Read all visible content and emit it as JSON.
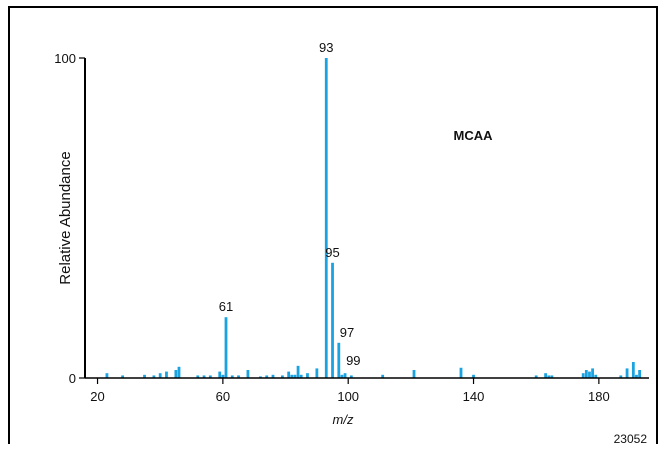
{
  "chart_data": {
    "type": "bar",
    "ylabel": "Relative Abundance",
    "xlabel": "m/z",
    "inset_label": "MCAA",
    "figure_code": "23052",
    "xlim": [
      16,
      196
    ],
    "ylim": [
      0,
      100
    ],
    "xticks": [
      20,
      60,
      100,
      140,
      180
    ],
    "yticks": [
      0,
      100
    ],
    "color": "#1aa3e0",
    "peaks": [
      {
        "mz": 23,
        "value": 1.5
      },
      {
        "mz": 28,
        "value": 0.8
      },
      {
        "mz": 35,
        "value": 1.0
      },
      {
        "mz": 38,
        "value": 0.8
      },
      {
        "mz": 40,
        "value": 1.5
      },
      {
        "mz": 42,
        "value": 2.0
      },
      {
        "mz": 45,
        "value": 2.5
      },
      {
        "mz": 46,
        "value": 3.5
      },
      {
        "mz": 52,
        "value": 0.8
      },
      {
        "mz": 54,
        "value": 0.8
      },
      {
        "mz": 56,
        "value": 0.8
      },
      {
        "mz": 59,
        "value": 2.0
      },
      {
        "mz": 60,
        "value": 1.0
      },
      {
        "mz": 61,
        "value": 19
      },
      {
        "mz": 63,
        "value": 0.8
      },
      {
        "mz": 65,
        "value": 0.8
      },
      {
        "mz": 68,
        "value": 2.5
      },
      {
        "mz": 72,
        "value": 0.5
      },
      {
        "mz": 74,
        "value": 0.8
      },
      {
        "mz": 76,
        "value": 1.0
      },
      {
        "mz": 79,
        "value": 0.8
      },
      {
        "mz": 81,
        "value": 2.0
      },
      {
        "mz": 82,
        "value": 1.0
      },
      {
        "mz": 83,
        "value": 1.0
      },
      {
        "mz": 84,
        "value": 3.8
      },
      {
        "mz": 85,
        "value": 1.0
      },
      {
        "mz": 87,
        "value": 1.5
      },
      {
        "mz": 90,
        "value": 3.0
      },
      {
        "mz": 93,
        "value": 100
      },
      {
        "mz": 95,
        "value": 36
      },
      {
        "mz": 97,
        "value": 11
      },
      {
        "mz": 98,
        "value": 1.0
      },
      {
        "mz": 99,
        "value": 1.5
      },
      {
        "mz": 101,
        "value": 0.8
      },
      {
        "mz": 111,
        "value": 1.0
      },
      {
        "mz": 121,
        "value": 2.5
      },
      {
        "mz": 136,
        "value": 3.2
      },
      {
        "mz": 140,
        "value": 1.0
      },
      {
        "mz": 160,
        "value": 0.8
      },
      {
        "mz": 163,
        "value": 1.5
      },
      {
        "mz": 164,
        "value": 0.8
      },
      {
        "mz": 165,
        "value": 0.8
      },
      {
        "mz": 175,
        "value": 1.5
      },
      {
        "mz": 176,
        "value": 2.5
      },
      {
        "mz": 177,
        "value": 2.0
      },
      {
        "mz": 178,
        "value": 3.0
      },
      {
        "mz": 179,
        "value": 1.0
      },
      {
        "mz": 187,
        "value": 0.8
      },
      {
        "mz": 189,
        "value": 3.0
      },
      {
        "mz": 191,
        "value": 5.0
      },
      {
        "mz": 192,
        "value": 1.0
      },
      {
        "mz": 193,
        "value": 2.5
      }
    ],
    "annotations": [
      {
        "mz": 93,
        "value": 100,
        "label": "93"
      },
      {
        "mz": 95,
        "value": 36,
        "label": "95"
      },
      {
        "mz": 61,
        "value": 19,
        "label": "61"
      },
      {
        "mz": 97,
        "value": 11,
        "label": "97"
      },
      {
        "mz": 99,
        "value": 1.5,
        "label": "99"
      }
    ]
  }
}
